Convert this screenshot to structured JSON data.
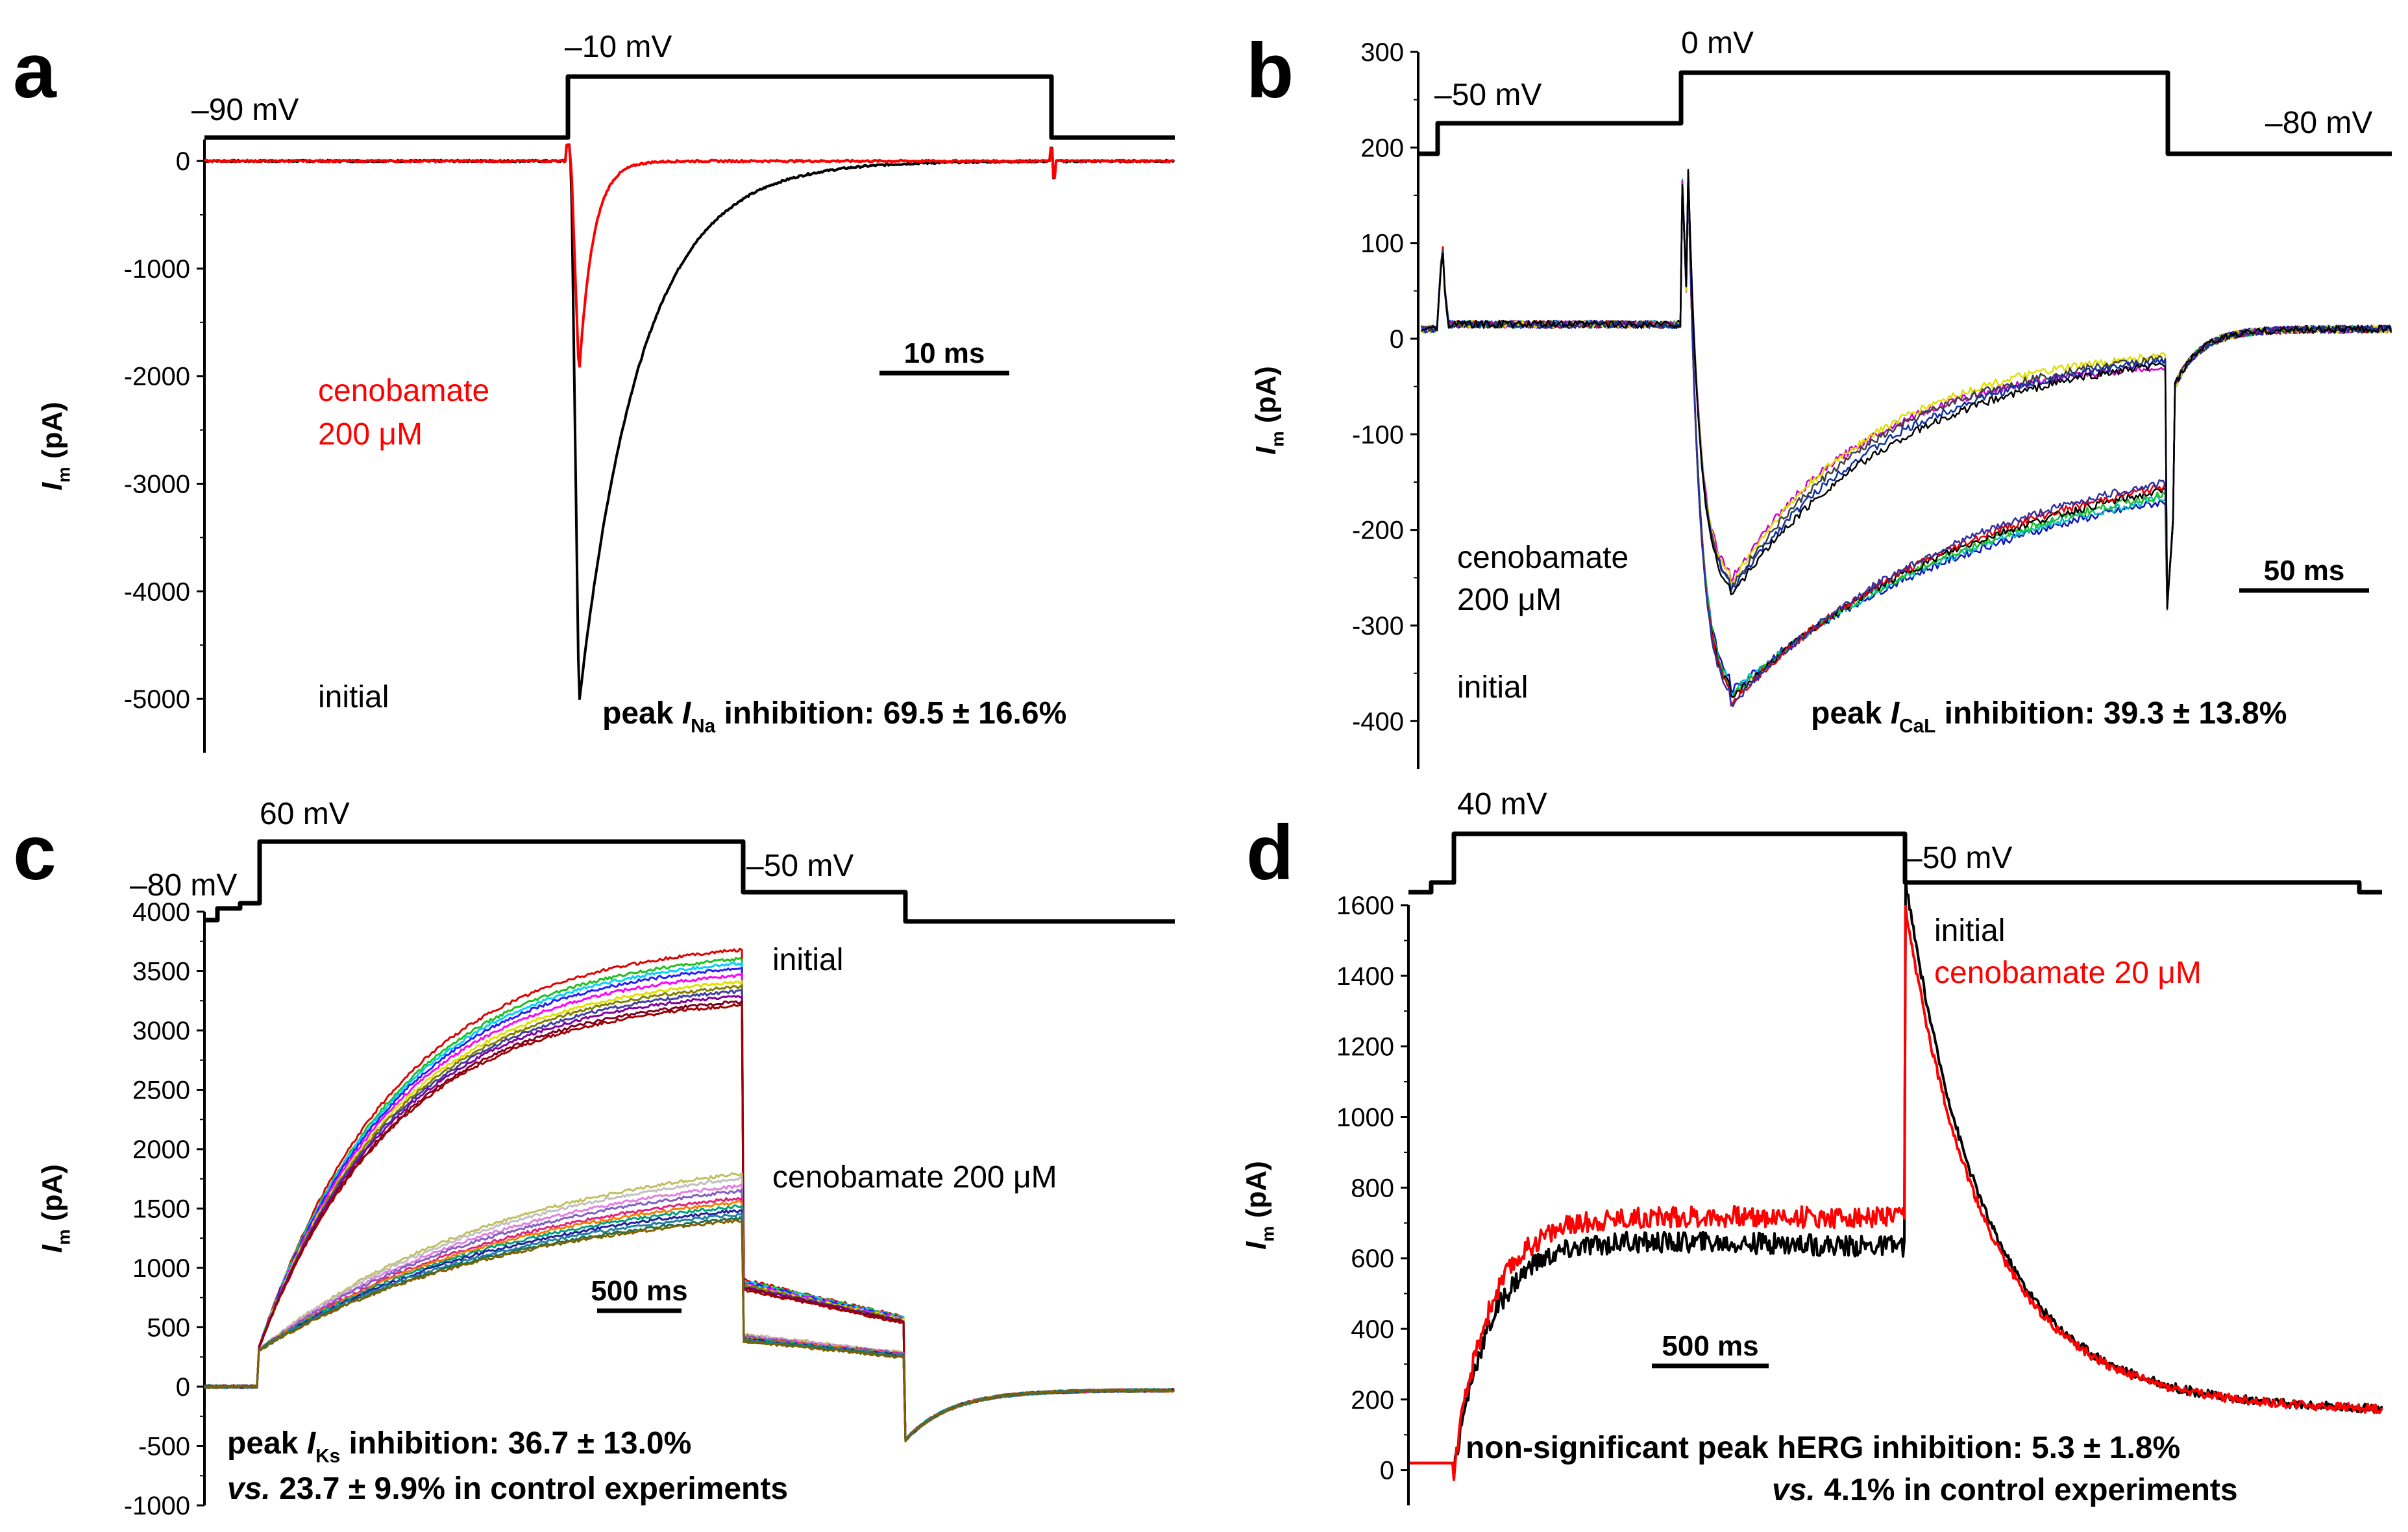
{
  "chart_data": [
    {
      "type": "line",
      "panel": "a",
      "protocol": {
        "labels": [
          "–90 mV",
          "–10 mV"
        ]
      },
      "ylabel_main": "I",
      "ylabel_sub": "m",
      "ylabel_unit": " (pA)",
      "ylim": [
        -5500,
        200
      ],
      "yticks": [
        0,
        -1000,
        -2000,
        -3000,
        -4000,
        -5000
      ],
      "scale_bar": "10 ms",
      "legend": [
        {
          "label": "cenobamate",
          "color": "#ff0000"
        },
        {
          "label": "200 μM",
          "color": "#ff0000"
        },
        {
          "label": "initial",
          "color": "#000000"
        }
      ],
      "stat": {
        "prefix": "peak ",
        "sym": "I",
        "sub": "Na",
        "text": " inhibition:  69.5 ± 16.6%"
      },
      "series": [
        {
          "name": "initial",
          "color": "#000000",
          "peak": -5050
        },
        {
          "name": "cenobamate 200 μM",
          "color": "#ff0000",
          "peak": -2000
        }
      ]
    },
    {
      "type": "line",
      "panel": "b",
      "protocol": {
        "labels": [
          "–50 mV",
          "0 mV",
          "–80 mV"
        ]
      },
      "ylabel_main": "I",
      "ylabel_sub": "m",
      "ylabel_unit": " (pA)",
      "ylim": [
        -450,
        300
      ],
      "yticks": [
        300,
        200,
        100,
        0,
        -100,
        -200,
        -300,
        -400
      ],
      "scale_bar": "50 ms",
      "legend": [
        {
          "label": "cenobamate",
          "color": "#000000"
        },
        {
          "label": "200 μM",
          "color": "#000000"
        },
        {
          "label": "initial",
          "color": "#000000"
        }
      ],
      "stat": {
        "prefix": "peak ",
        "sym": "I",
        "sub": "CaL",
        "text": " inhibition:  39.3 ± 13.8%"
      },
      "series_initial_peak": -370,
      "series_cenobamate_peak": -255,
      "colors": [
        "#1010c0",
        "#00c0c0",
        "#20c020",
        "#000000",
        "#e00000",
        "#3030a0"
      ],
      "colors_drug": [
        "#d000d0",
        "#e0e000",
        "#404040",
        "#1030a0",
        "#000000"
      ]
    },
    {
      "type": "line",
      "panel": "c",
      "protocol": {
        "labels": [
          "–80 mV",
          "60 mV",
          "–50 mV"
        ]
      },
      "ylabel_main": "I",
      "ylabel_sub": "m",
      "ylabel_unit": " (pA)",
      "ylim": [
        -1000,
        4000
      ],
      "yticks": [
        4000,
        3500,
        3000,
        2500,
        2000,
        1500,
        1000,
        500,
        0,
        -500,
        -1000
      ],
      "scale_bar": "500 ms",
      "legend": [
        {
          "label": "initial",
          "color": "#000000"
        },
        {
          "label": "cenobamate 200 μM",
          "color": "#000000"
        }
      ],
      "stat": {
        "prefix": "peak ",
        "sym": "I",
        "sub": "Ks",
        "text": " inhibition:  36.7 ± 13.0%"
      },
      "stat2": {
        "it": "vs.",
        "rest": " 23.7 ± 9.9% in control experiments"
      },
      "initial_levels": [
        3780,
        3700,
        3660,
        3620,
        3560,
        3500,
        3460,
        3420,
        3380,
        3330,
        3300
      ],
      "drug_levels": [
        2040,
        1990,
        1920,
        1870,
        1800,
        1760,
        1720,
        1680,
        1640,
        1600,
        1580
      ],
      "colors": [
        "#e00000",
        "#20c020",
        "#00d0ff",
        "#2020ff",
        "#ff00ff",
        "#e0e000",
        "#808000",
        "#4040a0",
        "#8000a0",
        "#800020",
        "#a00000"
      ],
      "colors_drug": [
        "#c0c060",
        "#c0c0c0",
        "#e080e0",
        "#8060c0",
        "#e02080",
        "#f08000",
        "#00a080",
        "#2020a0",
        "#2080a0",
        "#207050",
        "#806000"
      ]
    },
    {
      "type": "line",
      "panel": "d",
      "protocol": {
        "labels": [
          "40 mV",
          "–50 mV"
        ]
      },
      "ylabel_main": "I",
      "ylabel_sub": "m",
      "ylabel_unit": " (pA)",
      "ylim": [
        -100,
        1600
      ],
      "yticks": [
        1600,
        1400,
        1200,
        1000,
        800,
        600,
        400,
        200,
        0
      ],
      "scale_bar": "500 ms",
      "legend": [
        {
          "label": "initial",
          "color": "#000000"
        },
        {
          "label": "cenobamate 20 μM",
          "color": "#ff0000"
        }
      ],
      "stat": {
        "text": "non-significant peak hERG inhibition:  5.3 ± 1.8%"
      },
      "stat2": {
        "it": "vs.",
        "rest": " 4.1% in control experiments"
      },
      "series": [
        {
          "name": "initial",
          "color": "#000000",
          "plateau": 650,
          "peak": 1590
        },
        {
          "name": "cenobamate 20 μM",
          "color": "#ff0000",
          "plateau": 720,
          "peak": 1510
        }
      ]
    }
  ]
}
